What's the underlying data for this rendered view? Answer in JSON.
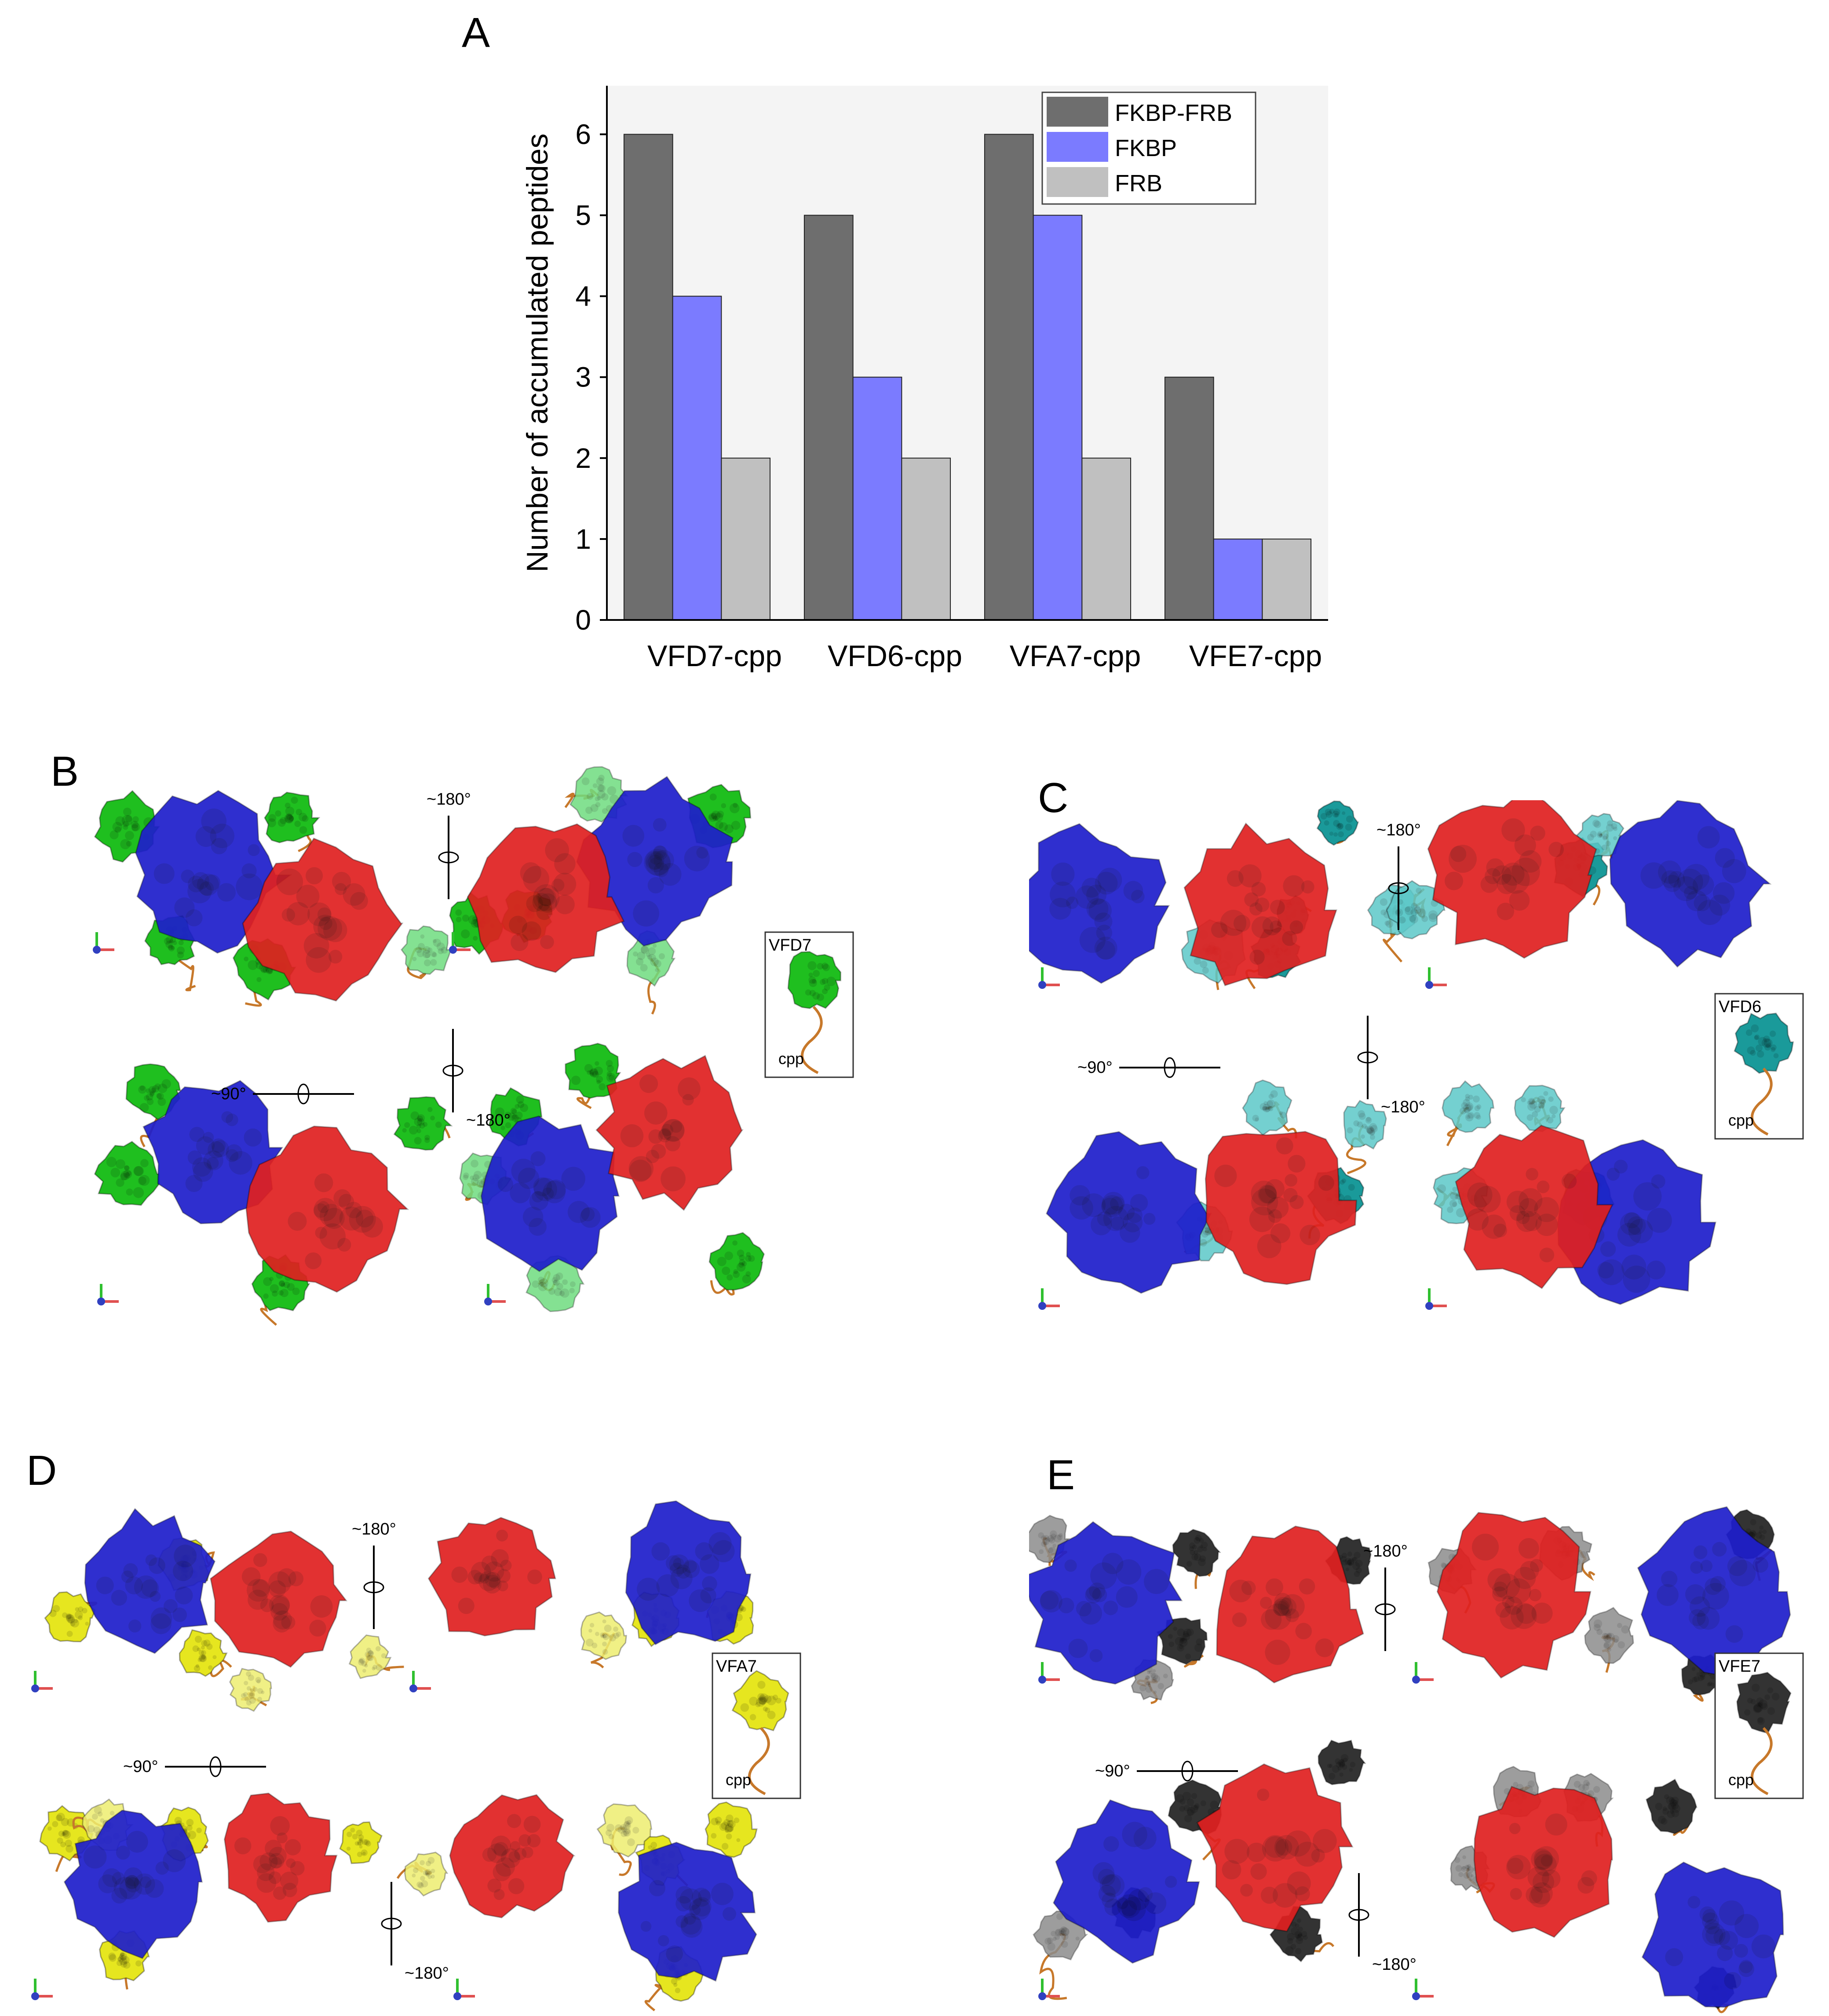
{
  "chart_data": {
    "type": "bar",
    "panel_label": "A",
    "categories": [
      "VFD7-cpp",
      "VFD6-cpp",
      "VFA7-cpp",
      "VFE7-cpp"
    ],
    "series": [
      {
        "name": "FKBP-FRB",
        "values": [
          6,
          5,
          6,
          3
        ],
        "color": "#6e6e6e"
      },
      {
        "name": "FKBP",
        "values": [
          4,
          3,
          5,
          1
        ],
        "color": "#7b7bff"
      },
      {
        "name": "FRB",
        "values": [
          2,
          2,
          2,
          1
        ],
        "color": "#c0c0c0"
      }
    ],
    "ylabel": "Number of accumulated peptides",
    "xlabel": "",
    "ylim": [
      0,
      6.6
    ],
    "yticks": [
      0,
      1,
      2,
      3,
      4,
      5,
      6
    ],
    "grid": false,
    "legend": "top-right"
  },
  "panels": {
    "B": {
      "label": "B",
      "rot_top": "~180°",
      "rot_mid": "~90°",
      "rot_bottom": "~180°",
      "inset_peptide": "VFD7",
      "inset_tail": "cpp",
      "peptide_color": "#1fbf1f",
      "peptide_light": "#6fdc7f"
    },
    "C": {
      "label": "C",
      "rot_top": "~180°",
      "rot_mid": "~90°",
      "rot_bottom": "~180°",
      "inset_peptide": "VFD6",
      "inset_tail": "cpp",
      "peptide_color": "#1a9a9a",
      "peptide_light": "#5cc8c8"
    },
    "D": {
      "label": "D",
      "rot_top": "~180°",
      "rot_mid": "~90°",
      "rot_bottom": "~180°",
      "inset_peptide": "VFA7",
      "inset_tail": "cpp",
      "peptide_color": "#e6e61f",
      "peptide_light": "#eeee70"
    },
    "E": {
      "label": "E",
      "rot_top": "~180°",
      "rot_mid": "~90°",
      "rot_bottom": "~180°",
      "inset_peptide": "VFE7",
      "inset_tail": "cpp",
      "peptide_color": "#333333",
      "peptide_light": "#8c8c8c"
    }
  },
  "colors": {
    "fkbp_blue": "#1e1ecc",
    "frb_red": "#e02020",
    "tail_orange": "#c7782a"
  }
}
